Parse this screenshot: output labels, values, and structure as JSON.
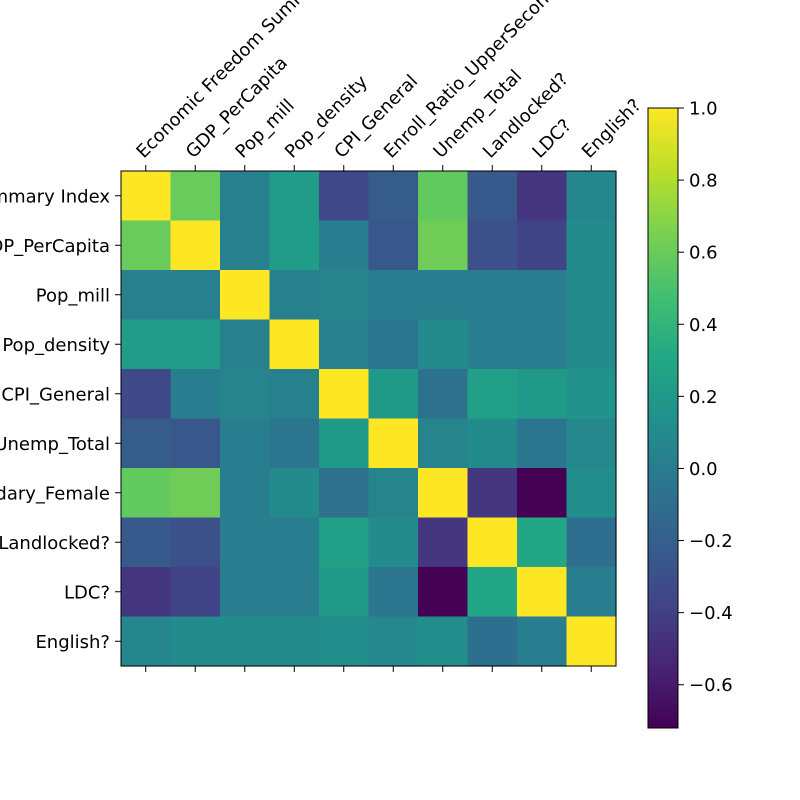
{
  "chart_data": {
    "type": "heatmap",
    "title": "",
    "xlabel": "",
    "ylabel": "",
    "x_tick_labels": [
      "Economic Freedom Summary Index",
      "GDP_PerCapita",
      "Pop_mill",
      "Pop_density",
      "CPI_General",
      "Enroll_Ratio_UpperSecondary_Female",
      "Unemp_Total",
      "Landlocked?",
      "LDC?",
      "English?"
    ],
    "y_tick_labels": [
      "Economic Freedom Summary Index",
      "GDP_PerCapita",
      "Pop_mill",
      "Pop_density",
      "CPI_General",
      "Unemp_Total",
      "Enroll_Ratio_UpperSecondary_Female",
      "Landlocked?",
      "LDC?",
      "English?"
    ],
    "colorbar": {
      "min": -0.72,
      "max": 1.0,
      "ticks": [
        "1.0",
        "0.8",
        "0.6",
        "0.4",
        "0.2",
        "0.0",
        "−0.2",
        "−0.4",
        "−0.6"
      ],
      "tick_values": [
        1.0,
        0.8,
        0.6,
        0.4,
        0.2,
        0.0,
        -0.2,
        -0.4,
        -0.6
      ],
      "colormap": "viridis"
    },
    "values": [
      [
        1.0,
        0.6,
        0.02,
        0.22,
        -0.35,
        -0.22,
        0.58,
        -0.24,
        -0.45,
        0.07
      ],
      [
        0.6,
        1.0,
        0.02,
        0.22,
        0.0,
        -0.25,
        0.62,
        -0.3,
        -0.38,
        0.1
      ],
      [
        0.02,
        0.02,
        1.0,
        0.03,
        0.05,
        0.01,
        0.0,
        0.0,
        0.0,
        0.1
      ],
      [
        0.22,
        0.22,
        0.03,
        1.0,
        0.03,
        -0.05,
        0.1,
        0.0,
        0.0,
        0.1
      ],
      [
        -0.35,
        0.0,
        0.05,
        0.03,
        1.0,
        0.2,
        -0.08,
        0.25,
        0.2,
        0.15
      ],
      [
        -0.22,
        -0.25,
        0.01,
        -0.05,
        0.2,
        1.0,
        0.05,
        0.1,
        -0.05,
        0.08
      ],
      [
        0.58,
        0.62,
        0.0,
        0.1,
        -0.08,
        0.05,
        1.0,
        -0.45,
        -0.72,
        0.12
      ],
      [
        -0.24,
        -0.3,
        0.0,
        0.0,
        0.25,
        0.1,
        -0.45,
        1.0,
        0.3,
        -0.1
      ],
      [
        -0.45,
        -0.38,
        0.0,
        0.0,
        0.2,
        -0.05,
        -0.72,
        0.3,
        1.0,
        0.0
      ],
      [
        0.07,
        0.1,
        0.1,
        0.1,
        0.12,
        0.08,
        0.12,
        -0.1,
        0.0,
        1.0
      ]
    ]
  }
}
